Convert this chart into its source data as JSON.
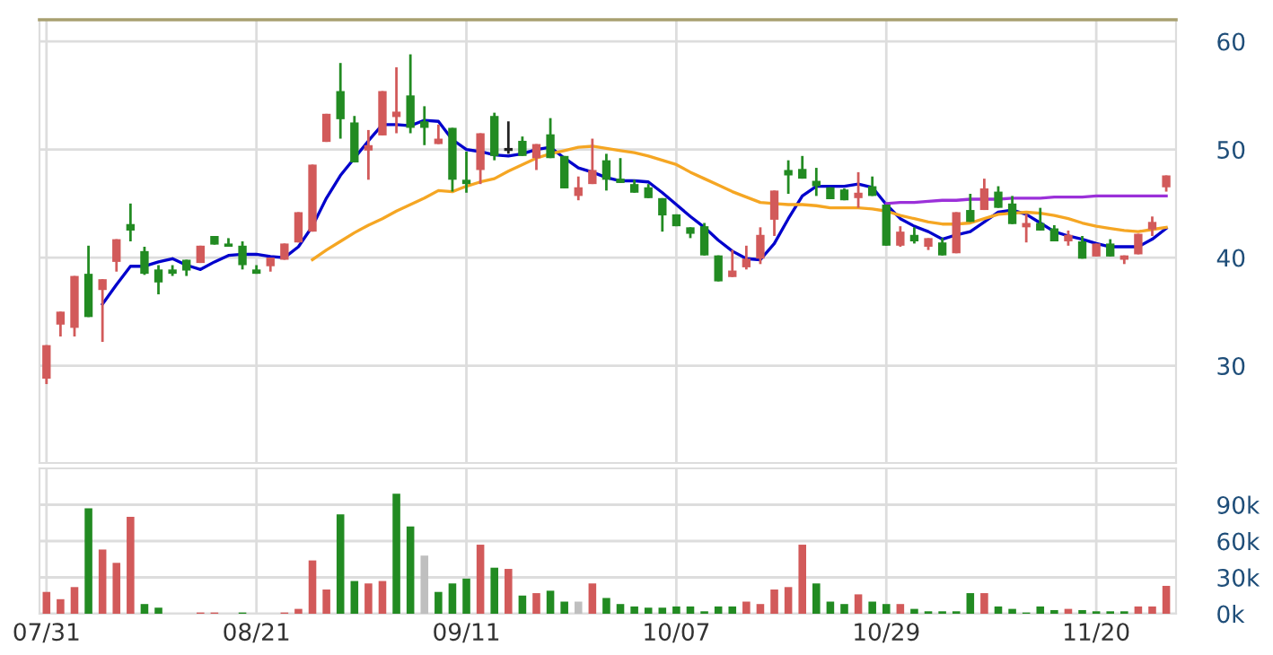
{
  "chart_data": [
    {
      "type": "candlestick",
      "categories": [
        null,
        null,
        null,
        null,
        null,
        null,
        null,
        null,
        null,
        null,
        null,
        null,
        null,
        null,
        null,
        null,
        null,
        null,
        null,
        null,
        null,
        null,
        null,
        null,
        null,
        null,
        null,
        null,
        null,
        null,
        null,
        null,
        null,
        null,
        null,
        null,
        null,
        null,
        null,
        null,
        null,
        null,
        null,
        null,
        null,
        null,
        null,
        null,
        null,
        null,
        null,
        null,
        null,
        null,
        null,
        null,
        null,
        null,
        null,
        null,
        null,
        null,
        null,
        null,
        null,
        null,
        null,
        null,
        null,
        null,
        null,
        null,
        null,
        null,
        null,
        null,
        null,
        null,
        null,
        null,
        null
      ],
      "ylim": [
        21,
        62
      ],
      "yticks": [
        30,
        40,
        50,
        60
      ],
      "tick_labels": "y",
      "grid": true,
      "series": [
        {
          "type": "candlestick",
          "ohlc": [
            [
              28.8,
              31.9,
              28.3,
              31.9
            ],
            [
              33.8,
              35.0,
              32.7,
              35.0
            ],
            [
              33.5,
              38.3,
              32.7,
              38.3
            ],
            [
              38.5,
              41.1,
              34.5,
              34.5
            ],
            [
              37.0,
              38.0,
              32.2,
              38.0
            ],
            [
              39.6,
              41.7,
              38.7,
              41.7
            ],
            [
              43.1,
              45.0,
              41.5,
              42.5
            ],
            [
              40.6,
              41.0,
              38.4,
              38.5
            ],
            [
              38.9,
              39.3,
              36.6,
              37.7
            ],
            [
              38.9,
              39.3,
              38.3,
              38.5
            ],
            [
              39.8,
              39.8,
              38.3,
              38.8
            ],
            [
              39.5,
              41.1,
              39.5,
              41.1
            ],
            [
              42.0,
              42.0,
              41.2,
              41.2
            ],
            [
              41.3,
              41.8,
              41.0,
              41.0
            ],
            [
              41.1,
              41.5,
              38.9,
              39.3
            ],
            [
              38.9,
              39.3,
              38.5,
              38.5
            ],
            [
              39.2,
              40.0,
              38.7,
              40.0
            ],
            [
              39.8,
              41.3,
              39.8,
              41.3
            ],
            [
              41.4,
              44.2,
              41.4,
              44.2
            ],
            [
              42.4,
              48.6,
              42.4,
              48.6
            ],
            [
              50.7,
              53.3,
              50.7,
              53.3
            ],
            [
              55.4,
              58.0,
              51.0,
              52.8
            ],
            [
              52.5,
              53.1,
              48.8,
              48.8
            ],
            [
              49.9,
              51.8,
              47.2,
              50.4
            ],
            [
              51.3,
              55.4,
              51.3,
              55.4
            ],
            [
              53.0,
              57.6,
              51.5,
              53.5
            ],
            [
              55.0,
              58.8,
              51.5,
              52.0
            ],
            [
              52.6,
              54.0,
              50.4,
              52.0
            ],
            [
              50.5,
              52.3,
              50.5,
              51.0
            ],
            [
              52.0,
              52.0,
              46.1,
              47.2
            ],
            [
              47.2,
              49.8,
              46.0,
              46.8
            ],
            [
              48.1,
              51.5,
              46.8,
              51.5
            ],
            [
              53.1,
              53.4,
              49.0,
              49.4
            ],
            [
              50.0,
              52.6,
              49.6,
              50.0
            ],
            [
              50.8,
              51.2,
              49.4,
              49.4
            ],
            [
              49.2,
              50.5,
              48.1,
              50.5
            ],
            [
              51.4,
              52.9,
              49.2,
              49.2
            ],
            [
              49.4,
              49.4,
              46.4,
              46.4
            ],
            [
              45.7,
              47.5,
              45.3,
              46.5
            ],
            [
              46.8,
              51.0,
              46.8,
              48.1
            ],
            [
              49.0,
              49.6,
              46.2,
              47.2
            ],
            [
              47.3,
              49.2,
              46.9,
              46.9
            ],
            [
              46.8,
              47.2,
              46.0,
              46.0
            ],
            [
              46.5,
              46.8,
              45.5,
              45.5
            ],
            [
              45.5,
              45.5,
              42.4,
              43.9
            ],
            [
              44.0,
              44.0,
              42.9,
              42.9
            ],
            [
              42.8,
              42.8,
              41.8,
              42.2
            ],
            [
              42.9,
              43.2,
              40.2,
              40.2
            ],
            [
              40.2,
              40.2,
              37.8,
              37.8
            ],
            [
              38.2,
              40.7,
              38.2,
              38.8
            ],
            [
              39.1,
              41.1,
              38.9,
              39.9
            ],
            [
              39.9,
              42.8,
              39.4,
              42.1
            ],
            [
              43.5,
              46.2,
              42.0,
              46.2
            ],
            [
              48.1,
              49.0,
              45.9,
              47.6
            ],
            [
              48.2,
              49.4,
              47.3,
              47.3
            ],
            [
              47.1,
              48.3,
              45.7,
              46.6
            ],
            [
              46.5,
              46.5,
              45.4,
              45.4
            ],
            [
              46.3,
              46.4,
              45.3,
              45.3
            ],
            [
              45.5,
              47.9,
              44.6,
              46.0
            ],
            [
              46.6,
              47.5,
              45.7,
              45.7
            ],
            [
              44.9,
              44.9,
              41.1,
              41.1
            ],
            [
              41.1,
              42.9,
              41.0,
              42.4
            ],
            [
              42.1,
              42.8,
              41.3,
              41.5
            ],
            [
              41.0,
              41.8,
              40.7,
              41.8
            ],
            [
              41.4,
              41.8,
              40.2,
              40.2
            ],
            [
              40.4,
              44.2,
              40.4,
              44.2
            ],
            [
              44.4,
              45.9,
              43.3,
              43.3
            ],
            [
              44.4,
              47.3,
              44.4,
              46.4
            ],
            [
              46.1,
              46.6,
              44.6,
              44.6
            ],
            [
              45.0,
              45.7,
              43.1,
              43.1
            ],
            [
              42.8,
              44.0,
              41.4,
              43.2
            ],
            [
              43.2,
              44.6,
              42.5,
              42.5
            ],
            [
              42.7,
              43.0,
              41.5,
              41.5
            ],
            [
              41.5,
              42.5,
              41.1,
              42.1
            ],
            [
              41.5,
              42.0,
              39.9,
              39.9
            ],
            [
              40.1,
              41.3,
              40.1,
              41.3
            ],
            [
              41.3,
              41.7,
              40.1,
              40.1
            ],
            [
              39.8,
              40.2,
              39.4,
              40.2
            ],
            [
              40.3,
              42.2,
              40.3,
              42.2
            ],
            [
              42.6,
              43.8,
              42.0,
              43.3
            ],
            [
              46.5,
              47.6,
              46.1,
              47.6
            ]
          ],
          "colors": [
            "#d25a5a",
            "#d25a5a",
            "#d25a5a",
            "#228b22",
            "#d25a5a",
            "#d25a5a",
            "#228b22",
            "#228b22",
            "#228b22",
            "#228b22",
            "#228b22",
            "#d25a5a",
            "#228b22",
            "#228b22",
            "#228b22",
            "#228b22",
            "#d25a5a",
            "#d25a5a",
            "#d25a5a",
            "#d25a5a",
            "#d25a5a",
            "#228b22",
            "#228b22",
            "#d25a5a",
            "#d25a5a",
            "#d25a5a",
            "#228b22",
            "#228b22",
            "#d25a5a",
            "#228b22",
            "#228b22",
            "#d25a5a",
            "#228b22",
            "#222222",
            "#228b22",
            "#d25a5a",
            "#228b22",
            "#228b22",
            "#d25a5a",
            "#d25a5a",
            "#228b22",
            "#228b22",
            "#228b22",
            "#228b22",
            "#228b22",
            "#228b22",
            "#228b22",
            "#228b22",
            "#228b22",
            "#d25a5a",
            "#d25a5a",
            "#d25a5a",
            "#d25a5a",
            "#228b22",
            "#228b22",
            "#228b22",
            "#228b22",
            "#228b22",
            "#d25a5a",
            "#228b22",
            "#228b22",
            "#d25a5a",
            "#228b22",
            "#d25a5a",
            "#228b22",
            "#d25a5a",
            "#228b22",
            "#d25a5a",
            "#228b22",
            "#228b22",
            "#d25a5a",
            "#228b22",
            "#228b22",
            "#d25a5a",
            "#228b22",
            "#d25a5a",
            "#228b22",
            "#d25a5a",
            "#d25a5a",
            "#d25a5a",
            "#d25a5a"
          ]
        },
        {
          "type": "line",
          "color": "#0000cc",
          "values": [
            null,
            null,
            null,
            null,
            35.7,
            37.5,
            39.2,
            39.2,
            39.6,
            39.9,
            39.3,
            38.9,
            39.6,
            40.2,
            40.3,
            40.3,
            40.1,
            40.0,
            41.0,
            42.9,
            45.5,
            47.6,
            49.2,
            50.8,
            52.3,
            52.3,
            52.2,
            52.7,
            52.6,
            50.9,
            50.0,
            49.8,
            49.5,
            49.4,
            49.6,
            50.0,
            50.2,
            49.2,
            48.3,
            47.9,
            47.4,
            47.1,
            47.1,
            47.0,
            46.0,
            44.9,
            43.8,
            42.8,
            41.6,
            40.6,
            39.9,
            39.8,
            41.3,
            43.6,
            45.7,
            46.6,
            46.6,
            46.6,
            46.8,
            46.5,
            44.9,
            43.6,
            42.9,
            42.4,
            41.7,
            42.1,
            42.4,
            43.3,
            44.2,
            44.4,
            44.0,
            43.2,
            42.4,
            42.0,
            41.7,
            41.3,
            41.0,
            41.0,
            41.0,
            41.7,
            42.7
          ]
        },
        {
          "type": "line",
          "color": "#f5a623",
          "values": [
            null,
            null,
            null,
            null,
            null,
            null,
            null,
            null,
            null,
            null,
            null,
            null,
            null,
            null,
            null,
            null,
            null,
            null,
            null,
            39.8,
            40.7,
            41.5,
            42.3,
            43.0,
            43.6,
            44.3,
            44.9,
            45.5,
            46.2,
            46.1,
            46.6,
            47.0,
            47.3,
            48.0,
            48.6,
            49.2,
            49.6,
            49.9,
            50.2,
            50.3,
            50.1,
            49.9,
            49.7,
            49.4,
            49.0,
            48.6,
            47.9,
            47.3,
            46.7,
            46.1,
            45.6,
            45.1,
            45.0,
            44.9,
            44.9,
            44.8,
            44.6,
            44.6,
            44.6,
            44.5,
            44.3,
            43.9,
            43.6,
            43.3,
            43.1,
            43.1,
            43.2,
            43.6,
            44.0,
            44.1,
            44.2,
            44.1,
            43.9,
            43.6,
            43.2,
            42.9,
            42.7,
            42.5,
            42.4,
            42.6,
            42.8
          ]
        },
        {
          "type": "line",
          "color": "#9b30d9",
          "values": [
            null,
            null,
            null,
            null,
            null,
            null,
            null,
            null,
            null,
            null,
            null,
            null,
            null,
            null,
            null,
            null,
            null,
            null,
            null,
            null,
            null,
            null,
            null,
            null,
            null,
            null,
            null,
            null,
            null,
            null,
            null,
            null,
            null,
            null,
            null,
            null,
            null,
            null,
            null,
            null,
            null,
            null,
            null,
            null,
            null,
            null,
            null,
            null,
            null,
            null,
            null,
            null,
            null,
            null,
            null,
            null,
            null,
            null,
            null,
            null,
            45.0,
            45.1,
            45.1,
            45.2,
            45.3,
            45.3,
            45.4,
            45.4,
            45.4,
            45.5,
            45.5,
            45.5,
            45.6,
            45.6,
            45.6,
            45.7,
            45.7,
            45.7,
            45.7,
            45.7,
            45.7
          ]
        }
      ]
    },
    {
      "type": "bar",
      "categories": [
        "07/31",
        null,
        null,
        null,
        null,
        null,
        null,
        null,
        null,
        null,
        null,
        null,
        null,
        null,
        null,
        "08/21",
        null,
        null,
        null,
        null,
        null,
        null,
        null,
        null,
        null,
        null,
        null,
        null,
        null,
        null,
        "09/11",
        null,
        null,
        null,
        null,
        null,
        null,
        null,
        null,
        null,
        null,
        null,
        null,
        null,
        null,
        "10/07",
        null,
        null,
        null,
        null,
        null,
        null,
        null,
        null,
        null,
        null,
        null,
        null,
        null,
        null,
        "10/29",
        null,
        null,
        null,
        null,
        null,
        null,
        null,
        null,
        null,
        null,
        null,
        null,
        null,
        null,
        "11/20",
        null,
        null,
        null,
        null,
        null
      ],
      "ylim": [
        0,
        120000
      ],
      "yticks": [
        {
          "value": 0,
          "label": "0k"
        },
        {
          "value": 30000,
          "label": "30k"
        },
        {
          "value": 60000,
          "label": "60k"
        },
        {
          "value": 90000,
          "label": "90k"
        }
      ],
      "grid": true,
      "values": [
        18000,
        12000,
        22000,
        87000,
        53000,
        42000,
        80000,
        8000,
        5000,
        0,
        0,
        1000,
        1000,
        0,
        1000,
        0,
        0,
        1000,
        4000,
        44000,
        20000,
        82000,
        27000,
        25000,
        27000,
        99000,
        72000,
        48000,
        18000,
        25000,
        29000,
        57000,
        38000,
        37000,
        15000,
        17000,
        19000,
        10000,
        10000,
        25000,
        13000,
        8000,
        6000,
        5000,
        5000,
        6000,
        6000,
        2000,
        6000,
        6000,
        10000,
        8000,
        20000,
        22000,
        57000,
        25000,
        10000,
        8000,
        16000,
        10000,
        8000,
        8000,
        4000,
        2000,
        2000,
        2000,
        17000,
        17000,
        6000,
        4000,
        1000,
        6000,
        3000,
        4000,
        3000,
        2000,
        2000,
        2000,
        6000,
        6000,
        23000
      ],
      "colors": [
        "#d25a5a",
        "#d25a5a",
        "#d25a5a",
        "#228b22",
        "#d25a5a",
        "#d25a5a",
        "#d25a5a",
        "#228b22",
        "#228b22",
        "#228b22",
        "#228b22",
        "#d25a5a",
        "#d25a5a",
        "#228b22",
        "#228b22",
        "#228b22",
        "#228b22",
        "#d25a5a",
        "#d25a5a",
        "#d25a5a",
        "#d25a5a",
        "#228b22",
        "#228b22",
        "#d25a5a",
        "#d25a5a",
        "#228b22",
        "#228b22",
        "#bfbfbf",
        "#228b22",
        "#228b22",
        "#228b22",
        "#d25a5a",
        "#228b22",
        "#d25a5a",
        "#228b22",
        "#d25a5a",
        "#228b22",
        "#228b22",
        "#bfbfbf",
        "#d25a5a",
        "#228b22",
        "#228b22",
        "#228b22",
        "#228b22",
        "#228b22",
        "#228b22",
        "#228b22",
        "#228b22",
        "#228b22",
        "#228b22",
        "#d25a5a",
        "#d25a5a",
        "#d25a5a",
        "#d25a5a",
        "#d25a5a",
        "#228b22",
        "#228b22",
        "#228b22",
        "#d25a5a",
        "#228b22",
        "#228b22",
        "#d25a5a",
        "#228b22",
        "#228b22",
        "#228b22",
        "#228b22",
        "#228b22",
        "#d25a5a",
        "#228b22",
        "#228b22",
        "#228b22",
        "#228b22",
        "#228b22",
        "#d25a5a",
        "#228b22",
        "#228b22",
        "#228b22",
        "#228b22",
        "#d25a5a",
        "#d25a5a",
        "#d25a5a"
      ]
    }
  ]
}
